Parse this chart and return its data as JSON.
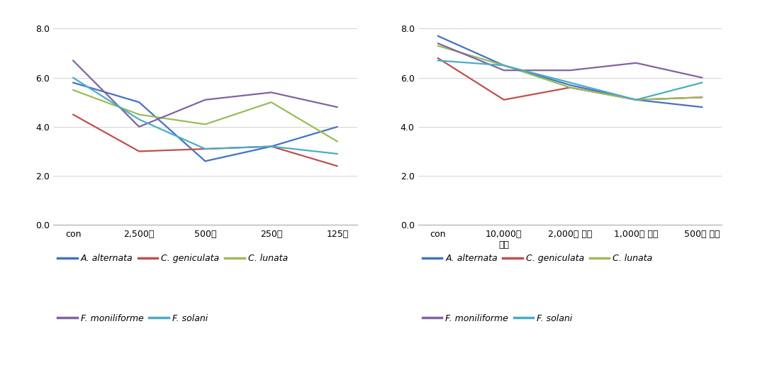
{
  "left": {
    "x_labels": [
      "con",
      "2,500배",
      "500배",
      "250배",
      "125배"
    ],
    "series": [
      {
        "name": "A. alternata",
        "color": "#4472C4",
        "values": [
          5.8,
          5.0,
          2.6,
          3.2,
          4.0
        ]
      },
      {
        "name": "C. geniculata",
        "color": "#C0504D",
        "values": [
          4.5,
          3.0,
          3.1,
          3.2,
          2.4
        ]
      },
      {
        "name": "C. lunata",
        "color": "#9BBB59",
        "values": [
          5.5,
          4.5,
          4.1,
          5.0,
          3.4
        ]
      },
      {
        "name": "F. moniliforme",
        "color": "#8064A2",
        "values": [
          6.7,
          4.0,
          5.1,
          5.4,
          4.8
        ]
      },
      {
        "name": "F. solani",
        "color": "#4BACC6",
        "values": [
          6.0,
          4.3,
          3.1,
          3.2,
          2.9
        ]
      }
    ]
  },
  "right": {
    "x_labels": [
      "con",
      "10,000배\n희석",
      "2,000배 희석",
      "1,000배 희석",
      "500배 희석"
    ],
    "series": [
      {
        "name": "A. alternata",
        "color": "#4472C4",
        "values": [
          7.7,
          6.5,
          5.7,
          5.1,
          4.8
        ]
      },
      {
        "name": "C. geniculata",
        "color": "#C0504D",
        "values": [
          6.8,
          5.1,
          5.6,
          5.1,
          5.2
        ]
      },
      {
        "name": "C. lunata",
        "color": "#9BBB59",
        "values": [
          7.3,
          6.5,
          5.6,
          5.1,
          5.2
        ]
      },
      {
        "name": "F. moniliforme",
        "color": "#8064A2",
        "values": [
          7.4,
          6.3,
          6.3,
          6.6,
          6.0
        ]
      },
      {
        "name": "F. solani",
        "color": "#4BACC6",
        "values": [
          6.7,
          6.5,
          5.8,
          5.1,
          5.8
        ]
      }
    ]
  },
  "ylim": [
    0.0,
    8.4
  ],
  "yticks": [
    0.0,
    2.0,
    4.0,
    6.0,
    8.0
  ],
  "line_width": 1.6,
  "bg_color": "#FFFFFF",
  "grid_color": "#CCCCCC",
  "tick_fontsize": 9,
  "legend_fontsize": 9
}
